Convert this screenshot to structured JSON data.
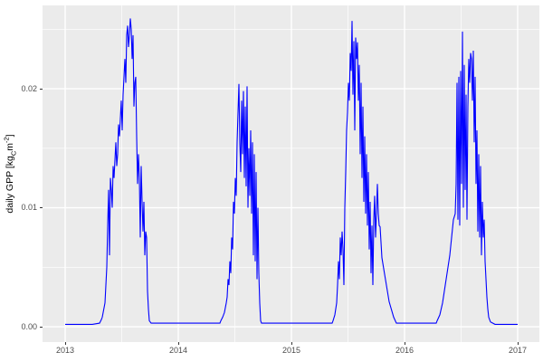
{
  "figure": {
    "background": "#FFFFFF",
    "panel_background": "#EBEBEB",
    "grid_color": "#FFFFFF",
    "tick_mark_color": "#333333",
    "tick_label_color": "#4D4D4D",
    "axis_title_color": "#000000"
  },
  "y_axis": {
    "title_prefix": "daily GPP [kg",
    "title_sub": "C",
    "title_mid": "m",
    "title_sup": "-2",
    "title_suffix": "]",
    "tick_labels": [
      "0.00",
      "0.01",
      "0.02"
    ]
  },
  "x_axis": {
    "tick_labels": [
      "2013",
      "2014",
      "2015",
      "2016",
      "2017"
    ]
  },
  "chart_data": {
    "type": "line",
    "title": "",
    "xlabel": "",
    "ylabel": "daily GPP [kg_C m^-2]",
    "legend": false,
    "grid": true,
    "xlim": [
      2012.8,
      2017.192
    ],
    "ylim": [
      -0.00129,
      0.027
    ],
    "x_ticks": [
      2013,
      2014,
      2015,
      2016,
      2017
    ],
    "x_tick_labels": [
      "2013",
      "2014",
      "2015",
      "2016",
      "2017"
    ],
    "y_ticks": [
      0,
      0.01,
      0.02
    ],
    "y_tick_labels": [
      "0.00",
      "0.01",
      "0.02"
    ],
    "x_minor_ticks": [
      2013.5,
      2014.5,
      2015.5,
      2016.5
    ],
    "y_minor_ticks": [
      0.005,
      0.015,
      0.025
    ],
    "series": [
      {
        "name": "daily GPP",
        "color": "#0000FF",
        "points": [
          [
            2013.0,
            0.0002
          ],
          [
            2013.08,
            0.0002
          ],
          [
            2013.16,
            0.0002
          ],
          [
            2013.24,
            0.0002
          ],
          [
            2013.304,
            0.0003
          ],
          [
            2013.32,
            0.0006
          ],
          [
            2013.328,
            0.0008
          ],
          [
            2013.336,
            0.0012
          ],
          [
            2013.352,
            0.002
          ],
          [
            2013.36,
            0.0035
          ],
          [
            2013.368,
            0.005
          ],
          [
            2013.376,
            0.0085
          ],
          [
            2013.384,
            0.0115
          ],
          [
            2013.392,
            0.006
          ],
          [
            2013.4,
            0.0125
          ],
          [
            2013.408,
            0.0115
          ],
          [
            2013.416,
            0.01
          ],
          [
            2013.424,
            0.0135
          ],
          [
            2013.432,
            0.0125
          ],
          [
            2013.44,
            0.014
          ],
          [
            2013.448,
            0.0155
          ],
          [
            2013.456,
            0.0135
          ],
          [
            2013.464,
            0.0145
          ],
          [
            2013.472,
            0.017
          ],
          [
            2013.48,
            0.016
          ],
          [
            2013.488,
            0.0175
          ],
          [
            2013.496,
            0.019
          ],
          [
            2013.504,
            0.0165
          ],
          [
            2013.512,
            0.0195
          ],
          [
            2013.52,
            0.021
          ],
          [
            2013.528,
            0.0225
          ],
          [
            2013.536,
            0.0205
          ],
          [
            2013.544,
            0.0245
          ],
          [
            2013.552,
            0.0253
          ],
          [
            2013.56,
            0.0235
          ],
          [
            2013.568,
            0.0245
          ],
          [
            2013.576,
            0.0259
          ],
          [
            2013.584,
            0.025
          ],
          [
            2013.592,
            0.0225
          ],
          [
            2013.6,
            0.0245
          ],
          [
            2013.608,
            0.0185
          ],
          [
            2013.616,
            0.0205
          ],
          [
            2013.624,
            0.021
          ],
          [
            2013.632,
            0.016
          ],
          [
            2013.64,
            0.012
          ],
          [
            2013.648,
            0.0145
          ],
          [
            2013.656,
            0.0125
          ],
          [
            2013.664,
            0.0075
          ],
          [
            2013.672,
            0.0135
          ],
          [
            2013.68,
            0.0105
          ],
          [
            2013.688,
            0.008
          ],
          [
            2013.696,
            0.0105
          ],
          [
            2013.704,
            0.006
          ],
          [
            2013.712,
            0.008
          ],
          [
            2013.72,
            0.0075
          ],
          [
            2013.728,
            0.003
          ],
          [
            2013.736,
            0.0015
          ],
          [
            2013.744,
            0.0005
          ],
          [
            2013.76,
            0.0003
          ],
          [
            2013.88,
            0.0003
          ],
          [
            2014.0,
            0.0003
          ],
          [
            2014.16,
            0.0003
          ],
          [
            2014.3,
            0.0003
          ],
          [
            2014.368,
            0.0003
          ],
          [
            2014.376,
            0.0005
          ],
          [
            2014.392,
            0.0008
          ],
          [
            2014.408,
            0.0012
          ],
          [
            2014.424,
            0.002
          ],
          [
            2014.432,
            0.0025
          ],
          [
            2014.44,
            0.004
          ],
          [
            2014.448,
            0.0035
          ],
          [
            2014.456,
            0.0055
          ],
          [
            2014.464,
            0.0045
          ],
          [
            2014.472,
            0.0075
          ],
          [
            2014.48,
            0.0065
          ],
          [
            2014.488,
            0.0105
          ],
          [
            2014.496,
            0.0095
          ],
          [
            2014.504,
            0.0125
          ],
          [
            2014.512,
            0.011
          ],
          [
            2014.52,
            0.0155
          ],
          [
            2014.528,
            0.018
          ],
          [
            2014.536,
            0.0204
          ],
          [
            2014.544,
            0.0155
          ],
          [
            2014.552,
            0.013
          ],
          [
            2014.56,
            0.019
          ],
          [
            2014.568,
            0.0145
          ],
          [
            2014.576,
            0.0198
          ],
          [
            2014.584,
            0.0125
          ],
          [
            2014.592,
            0.0185
          ],
          [
            2014.6,
            0.0118
          ],
          [
            2014.608,
            0.0202
          ],
          [
            2014.616,
            0.01
          ],
          [
            2014.624,
            0.015
          ],
          [
            2014.632,
            0.011
          ],
          [
            2014.64,
            0.0165
          ],
          [
            2014.648,
            0.0095
          ],
          [
            2014.656,
            0.0155
          ],
          [
            2014.664,
            0.006
          ],
          [
            2014.672,
            0.0145
          ],
          [
            2014.68,
            0.0055
          ],
          [
            2014.688,
            0.013
          ],
          [
            2014.696,
            0.004
          ],
          [
            2014.704,
            0.01
          ],
          [
            2014.712,
            0.0045
          ],
          [
            2014.72,
            0.002
          ],
          [
            2014.728,
            0.0005
          ],
          [
            2014.736,
            0.0003
          ],
          [
            2014.86,
            0.0003
          ],
          [
            2015.0,
            0.0003
          ],
          [
            2015.16,
            0.0003
          ],
          [
            2015.3,
            0.0003
          ],
          [
            2015.36,
            0.0003
          ],
          [
            2015.368,
            0.0005
          ],
          [
            2015.384,
            0.001
          ],
          [
            2015.4,
            0.002
          ],
          [
            2015.408,
            0.0035
          ],
          [
            2015.416,
            0.0055
          ],
          [
            2015.424,
            0.004
          ],
          [
            2015.432,
            0.0075
          ],
          [
            2015.44,
            0.006
          ],
          [
            2015.448,
            0.008
          ],
          [
            2015.456,
            0.0065
          ],
          [
            2015.464,
            0.0035
          ],
          [
            2015.472,
            0.01
          ],
          [
            2015.48,
            0.013
          ],
          [
            2015.488,
            0.0165
          ],
          [
            2015.496,
            0.018
          ],
          [
            2015.504,
            0.0205
          ],
          [
            2015.512,
            0.019
          ],
          [
            2015.52,
            0.023
          ],
          [
            2015.528,
            0.0215
          ],
          [
            2015.536,
            0.0257
          ],
          [
            2015.544,
            0.0195
          ],
          [
            2015.552,
            0.024
          ],
          [
            2015.56,
            0.0165
          ],
          [
            2015.568,
            0.0243
          ],
          [
            2015.576,
            0.0225
          ],
          [
            2015.584,
            0.0239
          ],
          [
            2015.592,
            0.019
          ],
          [
            2015.6,
            0.022
          ],
          [
            2015.608,
            0.0145
          ],
          [
            2015.616,
            0.0205
          ],
          [
            2015.624,
            0.0125
          ],
          [
            2015.632,
            0.0185
          ],
          [
            2015.64,
            0.0105
          ],
          [
            2015.648,
            0.016
          ],
          [
            2015.656,
            0.0095
          ],
          [
            2015.664,
            0.0145
          ],
          [
            2015.672,
            0.0085
          ],
          [
            2015.68,
            0.013
          ],
          [
            2015.688,
            0.0065
          ],
          [
            2015.696,
            0.0105
          ],
          [
            2015.704,
            0.0045
          ],
          [
            2015.712,
            0.0085
          ],
          [
            2015.72,
            0.0035
          ],
          [
            2015.728,
            0.009
          ],
          [
            2015.736,
            0.011
          ],
          [
            2015.744,
            0.0075
          ],
          [
            2015.752,
            0.0095
          ],
          [
            2015.76,
            0.012
          ],
          [
            2015.768,
            0.0095
          ],
          [
            2015.776,
            0.0085
          ],
          [
            2015.784,
            0.0084
          ],
          [
            2015.8,
            0.0058
          ],
          [
            2015.824,
            0.0044
          ],
          [
            2015.864,
            0.0021
          ],
          [
            2015.904,
            0.0008
          ],
          [
            2015.928,
            0.0003
          ],
          [
            2016.05,
            0.0003
          ],
          [
            2016.2,
            0.0003
          ],
          [
            2016.28,
            0.0003
          ],
          [
            2016.288,
            0.0005
          ],
          [
            2016.312,
            0.001
          ],
          [
            2016.336,
            0.002
          ],
          [
            2016.36,
            0.0035
          ],
          [
            2016.384,
            0.005
          ],
          [
            2016.4,
            0.006
          ],
          [
            2016.416,
            0.0075
          ],
          [
            2016.432,
            0.009
          ],
          [
            2016.448,
            0.0095
          ],
          [
            2016.456,
            0.012
          ],
          [
            2016.464,
            0.0205
          ],
          [
            2016.472,
            0.009
          ],
          [
            2016.48,
            0.021
          ],
          [
            2016.488,
            0.0085
          ],
          [
            2016.496,
            0.0215
          ],
          [
            2016.504,
            0.012
          ],
          [
            2016.512,
            0.0248
          ],
          [
            2016.52,
            0.01
          ],
          [
            2016.528,
            0.022
          ],
          [
            2016.536,
            0.0115
          ],
          [
            2016.544,
            0.0195
          ],
          [
            2016.552,
            0.009
          ],
          [
            2016.56,
            0.0185
          ],
          [
            2016.568,
            0.0225
          ],
          [
            2016.576,
            0.0205
          ],
          [
            2016.584,
            0.023
          ],
          [
            2016.592,
            0.0225
          ],
          [
            2016.6,
            0.019
          ],
          [
            2016.608,
            0.0232
          ],
          [
            2016.616,
            0.0155
          ],
          [
            2016.624,
            0.021
          ],
          [
            2016.632,
            0.012
          ],
          [
            2016.64,
            0.0165
          ],
          [
            2016.648,
            0.008
          ],
          [
            2016.656,
            0.0145
          ],
          [
            2016.664,
            0.0075
          ],
          [
            2016.672,
            0.0135
          ],
          [
            2016.68,
            0.006
          ],
          [
            2016.688,
            0.0105
          ],
          [
            2016.696,
            0.0075
          ],
          [
            2016.704,
            0.009
          ],
          [
            2016.712,
            0.0055
          ],
          [
            2016.72,
            0.004
          ],
          [
            2016.728,
            0.0025
          ],
          [
            2016.736,
            0.0015
          ],
          [
            2016.744,
            0.0008
          ],
          [
            2016.76,
            0.0004
          ],
          [
            2016.8,
            0.0002
          ],
          [
            2016.9,
            0.0002
          ],
          [
            2017.0,
            0.0002
          ]
        ]
      }
    ]
  }
}
